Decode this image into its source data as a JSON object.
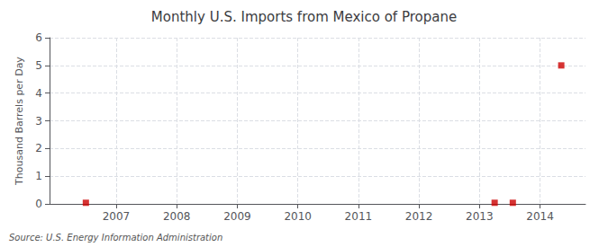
{
  "chart_data": {
    "type": "scatter",
    "title": "Monthly U.S. Imports from Mexico of Propane",
    "ylabel": "Thousand Barrels per Day",
    "annotation": "Source: U.S. Energy Information Administration",
    "x": [
      2006.5,
      2013.25,
      2013.55,
      2014.35
    ],
    "values": [
      0.04,
      0.04,
      0.04,
      5.0
    ],
    "color": "#cc0000",
    "marker": "square",
    "xlim": [
      2005.9,
      2014.75
    ],
    "ylim": [
      0,
      6
    ],
    "xticks": [
      2007,
      2008,
      2009,
      2010,
      2011,
      2012,
      2013,
      2014
    ],
    "yticks": [
      0,
      1,
      2,
      3,
      4,
      5,
      6
    ],
    "grid": true
  }
}
